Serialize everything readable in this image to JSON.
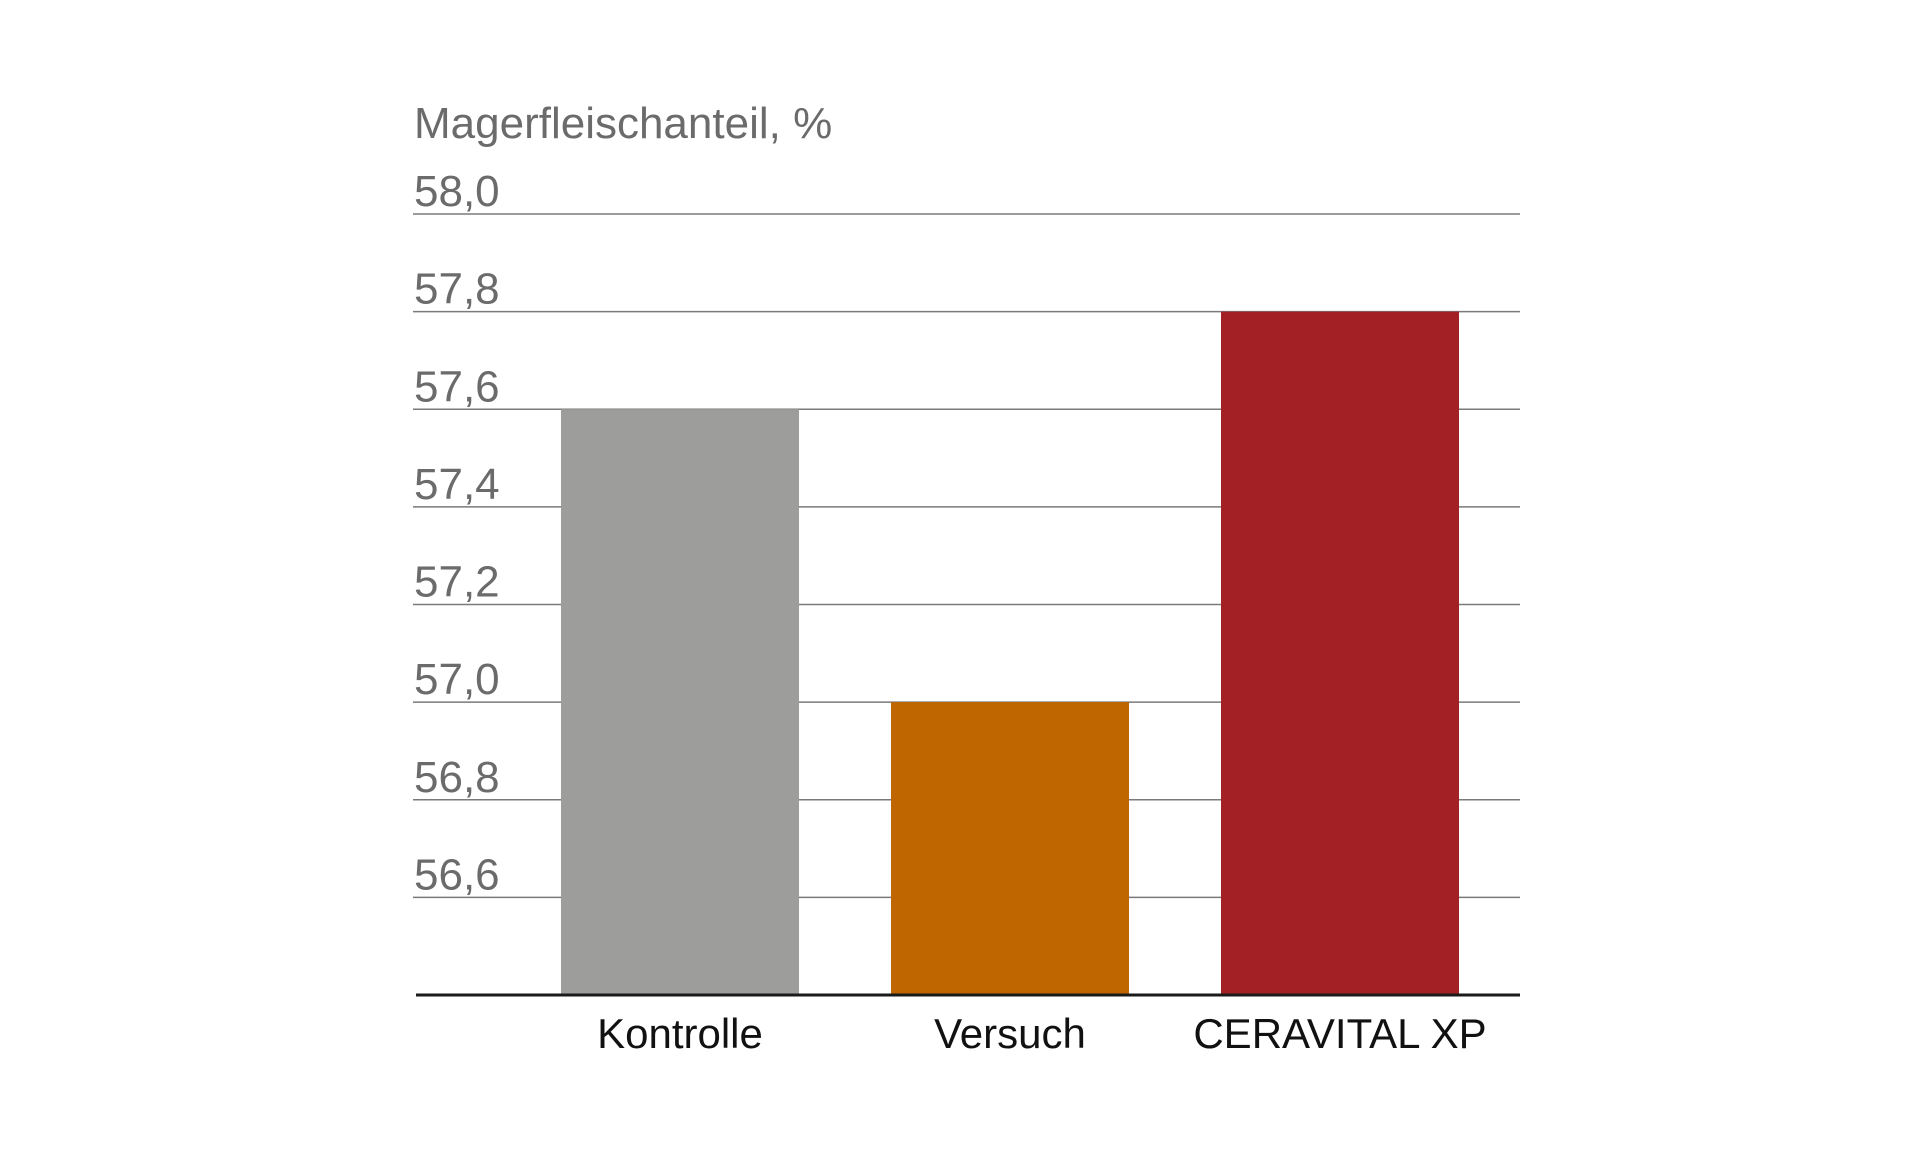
{
  "chart_data": {
    "type": "bar",
    "ylabel": "Magerfleischanteil, %",
    "categories": [
      "Kontrolle",
      "Versuch",
      "CERAVITAL XP"
    ],
    "values": [
      57.6,
      57.0,
      57.8
    ],
    "bar_colors": [
      "#9d9d9c",
      "#c06600",
      "#a32124"
    ],
    "ylim": [
      56.4,
      58.0
    ],
    "yticks": [
      56.6,
      56.8,
      57.0,
      57.2,
      57.4,
      57.6,
      57.8,
      58.0
    ],
    "ytick_labels": [
      "56,6",
      "56,8",
      "57,0",
      "57,2",
      "57,4",
      "57,6",
      "57,8",
      "58,0"
    ],
    "grid": true,
    "legend": "none"
  }
}
